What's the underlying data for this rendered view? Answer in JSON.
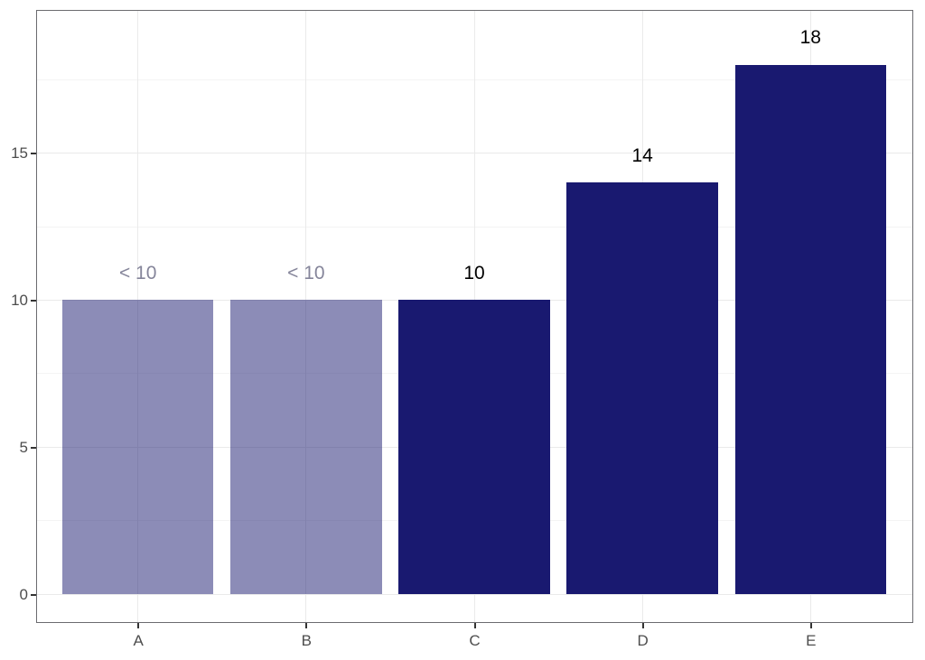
{
  "figure": {
    "background": "#ffffff",
    "title": ""
  },
  "chart_data": {
    "type": "bar",
    "title": "",
    "xlabel": "",
    "ylabel": "",
    "categories": [
      "A",
      "B",
      "C",
      "D",
      "E"
    ],
    "values": [
      10,
      10,
      10,
      14,
      18
    ],
    "bar_labels": [
      "< 10",
      "< 10",
      "10",
      "14",
      "18"
    ],
    "suppressed": [
      true,
      true,
      false,
      false,
      false
    ],
    "y_ticks": [
      0,
      5,
      10,
      15
    ],
    "y_tick_labels": [
      "0",
      "5",
      "10",
      "15"
    ],
    "y_minor_ticks": [
      2.5,
      7.5,
      12.5,
      17.5
    ],
    "ylim": [
      -0.92,
      19.84
    ],
    "grid": true,
    "legend_position": "none",
    "colors": {
      "bar": "#191970",
      "bar_suppressed": "rgba(25, 25, 112, 0.5)",
      "bar_label": "#000000",
      "bar_label_suppressed": "#85859a",
      "grid_major": "#eaeaea",
      "grid_minor": "#f4f4f4",
      "panel_border": "#6b6b6f",
      "axis_text": "#4d4d4d",
      "tick_mark": "#333333",
      "panel_background": "#ffffff"
    }
  }
}
